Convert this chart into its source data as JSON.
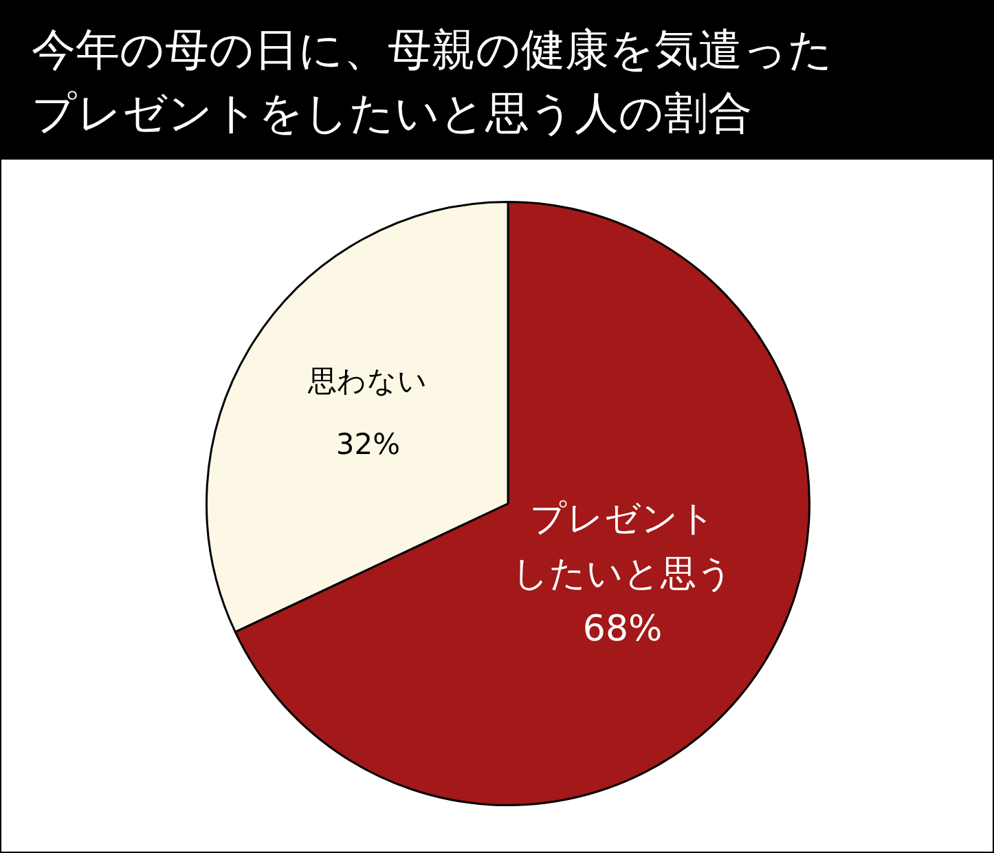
{
  "chart_data": {
    "type": "pie",
    "title": "今年の母の日に、母親の健康を気遣ったプレゼントをしたいと思う人の割合",
    "categories": [
      "プレゼントしたいと思う",
      "思わない"
    ],
    "values": [
      68,
      32
    ],
    "value_labels": [
      "68%",
      "32%"
    ],
    "colors": [
      "#a31818",
      "#fdf8e6"
    ],
    "legend": false
  }
}
